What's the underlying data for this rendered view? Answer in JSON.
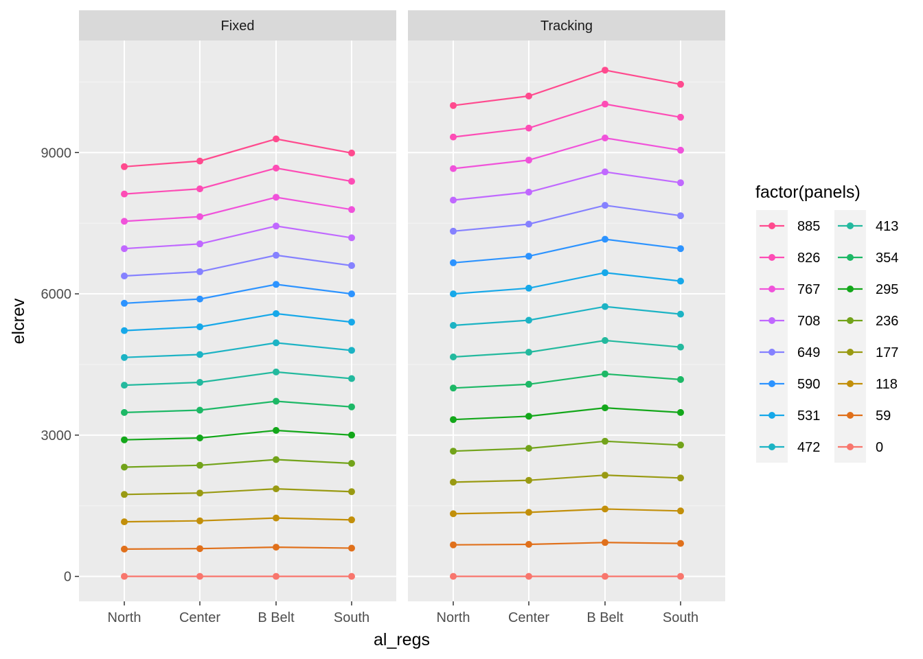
{
  "chart_data": {
    "type": "line",
    "xlabel": "al_regs",
    "ylabel": "elcrev",
    "categories": [
      "North",
      "Center",
      "B Belt",
      "South"
    ],
    "y_ticks": [
      0,
      3000,
      6000,
      9000
    ],
    "y_tick_labels": [
      "0",
      "3000",
      "6000",
      "9000"
    ],
    "ylim": [
      -530,
      11380
    ],
    "grid": true,
    "legend": {
      "title": "factor(panels)",
      "placement": "right",
      "columns": 2
    },
    "panels": [
      {
        "name": "Fixed",
        "series": [
          {
            "name": "885",
            "color": "#FF4A8E",
            "values": [
              8700,
              8820,
              9290,
              8990
            ]
          },
          {
            "name": "826",
            "color": "#FD4CB5",
            "values": [
              8120,
              8230,
              8670,
              8390
            ]
          },
          {
            "name": "767",
            "color": "#F052DA",
            "values": [
              7540,
              7640,
              8050,
              7790
            ]
          },
          {
            "name": "708",
            "color": "#C068FF",
            "values": [
              6960,
              7060,
              7440,
              7190
            ]
          },
          {
            "name": "649",
            "color": "#8581FF",
            "values": [
              6380,
              6470,
              6820,
              6600
            ]
          },
          {
            "name": "590",
            "color": "#2C93FF",
            "values": [
              5800,
              5890,
              6200,
              6000
            ]
          },
          {
            "name": "531",
            "color": "#16A8E9",
            "values": [
              5220,
              5300,
              5580,
              5400
            ]
          },
          {
            "name": "472",
            "color": "#1CB3C4",
            "values": [
              4650,
              4710,
              4960,
              4800
            ]
          },
          {
            "name": "413",
            "color": "#23B99E",
            "values": [
              4060,
              4120,
              4340,
              4200
            ]
          },
          {
            "name": "354",
            "color": "#1DB866",
            "values": [
              3480,
              3530,
              3720,
              3600
            ]
          },
          {
            "name": "295",
            "color": "#13A71A",
            "values": [
              2900,
              2940,
              3100,
              3000
            ]
          },
          {
            "name": "236",
            "color": "#72A31A",
            "values": [
              2320,
              2360,
              2480,
              2400
            ]
          },
          {
            "name": "177",
            "color": "#999A12",
            "values": [
              1740,
              1770,
              1860,
              1800
            ]
          },
          {
            "name": "118",
            "color": "#C28F0A",
            "values": [
              1160,
              1180,
              1240,
              1200
            ]
          },
          {
            "name": "59",
            "color": "#E0701B",
            "values": [
              580,
              590,
              620,
              600
            ]
          },
          {
            "name": "0",
            "color": "#F8766D",
            "values": [
              0,
              0,
              0,
              0
            ]
          }
        ]
      },
      {
        "name": "Tracking",
        "series": [
          {
            "name": "885",
            "color": "#FF4A8E",
            "values": [
              10000,
              10200,
              10750,
              10450
            ]
          },
          {
            "name": "826",
            "color": "#FD4CB5",
            "values": [
              9330,
              9520,
              10030,
              9750
            ]
          },
          {
            "name": "767",
            "color": "#F052DA",
            "values": [
              8660,
              8840,
              9310,
              9050
            ]
          },
          {
            "name": "708",
            "color": "#C068FF",
            "values": [
              7990,
              8160,
              8590,
              8360
            ]
          },
          {
            "name": "649",
            "color": "#8581FF",
            "values": [
              7330,
              7480,
              7880,
              7660
            ]
          },
          {
            "name": "590",
            "color": "#2C93FF",
            "values": [
              6660,
              6800,
              7160,
              6960
            ]
          },
          {
            "name": "531",
            "color": "#16A8E9",
            "values": [
              6000,
              6120,
              6450,
              6270
            ]
          },
          {
            "name": "472",
            "color": "#1CB3C4",
            "values": [
              5330,
              5440,
              5730,
              5570
            ]
          },
          {
            "name": "413",
            "color": "#23B99E",
            "values": [
              4660,
              4760,
              5010,
              4870
            ]
          },
          {
            "name": "354",
            "color": "#1DB866",
            "values": [
              4000,
              4080,
              4300,
              4180
            ]
          },
          {
            "name": "295",
            "color": "#13A71A",
            "values": [
              3330,
              3400,
              3580,
              3480
            ]
          },
          {
            "name": "236",
            "color": "#72A31A",
            "values": [
              2660,
              2720,
              2870,
              2790
            ]
          },
          {
            "name": "177",
            "color": "#999A12",
            "values": [
              2000,
              2040,
              2150,
              2090
            ]
          },
          {
            "name": "118",
            "color": "#C28F0A",
            "values": [
              1330,
              1360,
              1430,
              1390
            ]
          },
          {
            "name": "59",
            "color": "#E0701B",
            "values": [
              670,
              680,
              720,
              700
            ]
          },
          {
            "name": "0",
            "color": "#F8766D",
            "values": [
              0,
              0,
              0,
              0
            ]
          }
        ]
      }
    ]
  }
}
